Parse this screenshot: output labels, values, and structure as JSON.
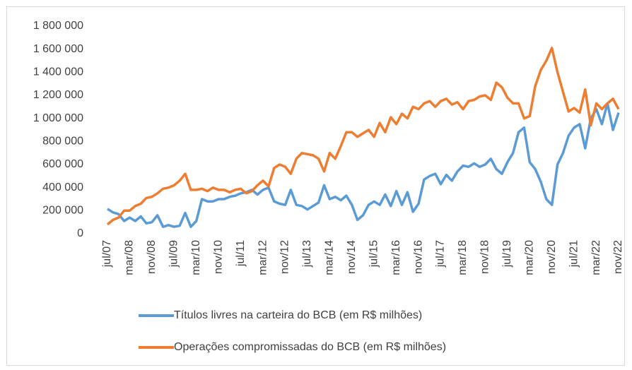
{
  "chart_data": {
    "type": "line",
    "categories": [
      "jul/07",
      null,
      null,
      null,
      "mar/08",
      null,
      null,
      null,
      "nov/08",
      null,
      null,
      null,
      "jul/09",
      null,
      null,
      null,
      "mar/10",
      null,
      null,
      null,
      "nov/10",
      null,
      null,
      null,
      "jul/11",
      null,
      null,
      null,
      "mar/12",
      null,
      null,
      null,
      "nov/12",
      null,
      null,
      null,
      "jul/13",
      null,
      null,
      null,
      "mar/14",
      null,
      null,
      null,
      "nov/14",
      null,
      null,
      null,
      "jul/15",
      null,
      null,
      null,
      "mar/16",
      null,
      null,
      null,
      "nov/16",
      null,
      null,
      null,
      "jul/17",
      null,
      null,
      null,
      "mar/18",
      null,
      null,
      null,
      "nov/18",
      null,
      null,
      null,
      "jul/19",
      null,
      null,
      null,
      "mar/20",
      null,
      null,
      null,
      "nov/20",
      null,
      null,
      null,
      "jul/21",
      null,
      null,
      null,
      "mar/22",
      null,
      null,
      null,
      "nov/22"
    ],
    "series": [
      {
        "name": "Títulos livres na carteira do BCB (em R$ milhões)",
        "color": "#5b9bd5",
        "values": [
          215000,
          185000,
          170000,
          110000,
          140000,
          110000,
          150000,
          90000,
          100000,
          160000,
          60000,
          75000,
          60000,
          70000,
          180000,
          60000,
          110000,
          300000,
          280000,
          280000,
          300000,
          300000,
          320000,
          330000,
          350000,
          360000,
          380000,
          340000,
          380000,
          400000,
          280000,
          260000,
          250000,
          380000,
          250000,
          240000,
          210000,
          240000,
          270000,
          420000,
          300000,
          320000,
          290000,
          330000,
          250000,
          120000,
          160000,
          250000,
          280000,
          250000,
          340000,
          240000,
          370000,
          250000,
          360000,
          190000,
          260000,
          470000,
          500000,
          520000,
          430000,
          510000,
          460000,
          540000,
          590000,
          580000,
          610000,
          580000,
          600000,
          650000,
          560000,
          520000,
          620000,
          700000,
          880000,
          920000,
          620000,
          560000,
          450000,
          300000,
          250000,
          600000,
          700000,
          850000,
          920000,
          950000,
          740000,
          1000000,
          1080000,
          950000,
          1130000,
          900000,
          1050000
        ]
      },
      {
        "name": "Operações compromissadas do BCB (em R$ milhões)",
        "color": "#ed7d31",
        "values": [
          80000,
          120000,
          140000,
          200000,
          200000,
          240000,
          260000,
          310000,
          320000,
          350000,
          390000,
          400000,
          420000,
          460000,
          520000,
          380000,
          380000,
          390000,
          370000,
          400000,
          380000,
          380000,
          360000,
          380000,
          390000,
          350000,
          370000,
          420000,
          460000,
          410000,
          570000,
          600000,
          580000,
          520000,
          650000,
          700000,
          690000,
          680000,
          650000,
          540000,
          700000,
          650000,
          760000,
          880000,
          880000,
          840000,
          870000,
          900000,
          840000,
          960000,
          880000,
          1010000,
          950000,
          1040000,
          1000000,
          1100000,
          1080000,
          1130000,
          1150000,
          1100000,
          1150000,
          1170000,
          1120000,
          1140000,
          1080000,
          1150000,
          1160000,
          1190000,
          1200000,
          1160000,
          1310000,
          1270000,
          1180000,
          1130000,
          1130000,
          1000000,
          1020000,
          1280000,
          1420000,
          1500000,
          1610000,
          1400000,
          1230000,
          1060000,
          1090000,
          1050000,
          1250000,
          940000,
          1130000,
          1080000,
          1130000,
          1170000,
          1080000
        ]
      }
    ],
    "ylim": [
      0,
      1800000
    ],
    "yticks": [
      0,
      {
        "value": 200000,
        "label": "200 000"
      },
      {
        "value": 400000,
        "label": "400 000"
      },
      {
        "value": 600000,
        "label": "600 000"
      },
      {
        "value": 800000,
        "label": "800 000"
      },
      {
        "value": 1000000,
        "label": "1 000 000"
      },
      {
        "value": 1200000,
        "label": "1 200 000"
      },
      {
        "value": 1400000,
        "label": "1 400 000"
      },
      {
        "value": 1600000,
        "label": "1 600 000"
      },
      {
        "value": 1800000,
        "label": "1 800 000"
      }
    ],
    "legend": "bottom"
  }
}
